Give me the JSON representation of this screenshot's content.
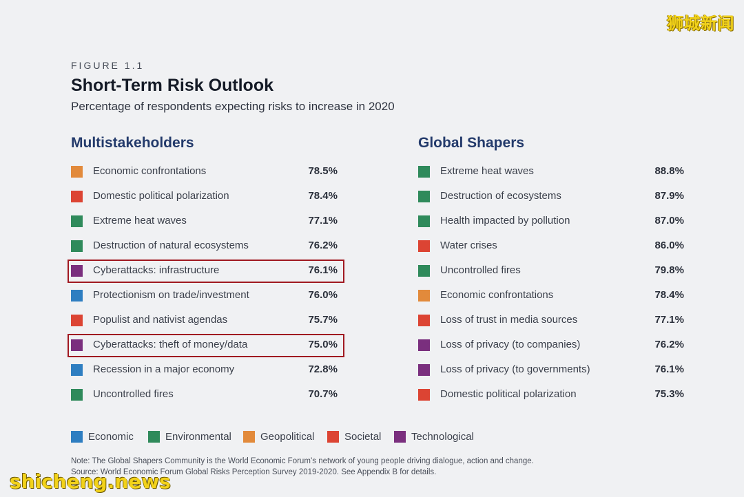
{
  "watermarks": {
    "top_right": "狮城新闻",
    "bottom_left": "shicheng.news"
  },
  "figure_label": "FIGURE 1.1",
  "title": "Short-Term Risk Outlook",
  "subtitle": "Percentage of respondents expecting risks to increase in 2020",
  "categories": {
    "Economic": "#2e7ec1",
    "Environmental": "#2f8a5b",
    "Geopolitical": "#e28a3b",
    "Societal": "#dc4433",
    "Technological": "#7a2f7e"
  },
  "legend": [
    "Economic",
    "Environmental",
    "Geopolitical",
    "Societal",
    "Technological"
  ],
  "note_line1": "Note: The Global Shapers Community is the World Economic Forum’s network of young people driving dialogue, action and change.",
  "note_line2": "Source: World Economic Forum Global Risks Perception Survey 2019-2020. See Appendix B for details.",
  "chart_data": [
    {
      "type": "table",
      "title": "Multistakeholders",
      "rows": [
        {
          "label": "Economic confrontations",
          "value": "78.5%",
          "category": "Geopolitical",
          "highlighted": false
        },
        {
          "label": "Domestic political polarization",
          "value": "78.4%",
          "category": "Societal",
          "highlighted": false
        },
        {
          "label": "Extreme heat waves",
          "value": "77.1%",
          "category": "Environmental",
          "highlighted": false
        },
        {
          "label": "Destruction of natural ecosystems",
          "value": "76.2%",
          "category": "Environmental",
          "highlighted": false
        },
        {
          "label": "Cyberattacks: infrastructure",
          "value": "76.1%",
          "category": "Technological",
          "highlighted": true
        },
        {
          "label": "Protectionism on trade/investment",
          "value": "76.0%",
          "category": "Economic",
          "highlighted": false
        },
        {
          "label": "Populist and nativist agendas",
          "value": "75.7%",
          "category": "Societal",
          "highlighted": false
        },
        {
          "label": "Cyberattacks: theft of money/data",
          "value": "75.0%",
          "category": "Technological",
          "highlighted": true
        },
        {
          "label": "Recession in a major economy",
          "value": "72.8%",
          "category": "Economic",
          "highlighted": false
        },
        {
          "label": "Uncontrolled fires",
          "value": "70.7%",
          "category": "Environmental",
          "highlighted": false
        }
      ]
    },
    {
      "type": "table",
      "title": "Global Shapers",
      "rows": [
        {
          "label": "Extreme heat waves",
          "value": "88.8%",
          "category": "Environmental",
          "highlighted": false
        },
        {
          "label": "Destruction of ecosystems",
          "value": "87.9%",
          "category": "Environmental",
          "highlighted": false
        },
        {
          "label": "Health impacted by pollution",
          "value": "87.0%",
          "category": "Environmental",
          "highlighted": false
        },
        {
          "label": "Water crises",
          "value": "86.0%",
          "category": "Societal",
          "highlighted": false
        },
        {
          "label": "Uncontrolled fires",
          "value": "79.8%",
          "category": "Environmental",
          "highlighted": false
        },
        {
          "label": "Economic confrontations",
          "value": "78.4%",
          "category": "Geopolitical",
          "highlighted": false
        },
        {
          "label": "Loss of trust in media sources",
          "value": "77.1%",
          "category": "Societal",
          "highlighted": false
        },
        {
          "label": "Loss of privacy (to companies)",
          "value": "76.2%",
          "category": "Technological",
          "highlighted": false
        },
        {
          "label": "Loss of privacy (to governments)",
          "value": "76.1%",
          "category": "Technological",
          "highlighted": false
        },
        {
          "label": "Domestic political polarization",
          "value": "75.3%",
          "category": "Societal",
          "highlighted": false
        }
      ]
    }
  ]
}
